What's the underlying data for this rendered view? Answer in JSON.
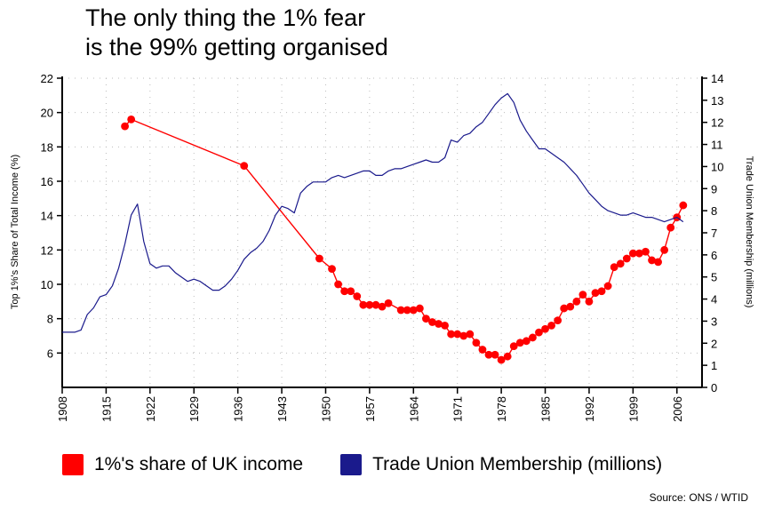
{
  "title": {
    "line1": "The only thing the 1% fear",
    "line2": "is the 99% getting organised"
  },
  "source": "Source: ONS / WTID",
  "legend": [
    {
      "label": "1%'s share of UK income",
      "color": "#ff0000"
    },
    {
      "label": "Trade Union Membership (millions)",
      "color": "#1a1a8c"
    }
  ],
  "chart_data": {
    "type": "line",
    "xlim": [
      1908,
      2010
    ],
    "x_ticks": [
      1908,
      1915,
      1922,
      1929,
      1936,
      1943,
      1950,
      1957,
      1964,
      1971,
      1978,
      1985,
      1992,
      1999,
      2006
    ],
    "ylabel_left": "Top 1%'s Share of Total Income (%)",
    "ylabel_right": "Trade Union Membership (millions)",
    "ylim_left": [
      4,
      22
    ],
    "yticks_left": [
      6,
      8,
      10,
      12,
      14,
      16,
      18,
      20,
      22
    ],
    "ylim_right": [
      0,
      14
    ],
    "yticks_right": [
      0,
      1,
      2,
      3,
      4,
      5,
      6,
      7,
      8,
      9,
      10,
      11,
      12,
      13,
      14
    ],
    "grid": "dotted",
    "series": [
      {
        "name": "1%'s share of UK income",
        "axis": "left",
        "color": "#ff0000",
        "markers": true,
        "x": [
          1918,
          1919,
          1937,
          1949,
          1951,
          1952,
          1953,
          1954,
          1955,
          1956,
          1957,
          1958,
          1959,
          1960,
          1962,
          1963,
          1964,
          1965,
          1966,
          1967,
          1968,
          1969,
          1970,
          1971,
          1972,
          1973,
          1974,
          1975,
          1976,
          1977,
          1978,
          1979,
          1980,
          1981,
          1982,
          1983,
          1984,
          1985,
          1986,
          1987,
          1988,
          1989,
          1990,
          1991,
          1992,
          1993,
          1994,
          1995,
          1996,
          1997,
          1998,
          1999,
          2000,
          2001,
          2002,
          2003,
          2004,
          2005,
          2006,
          2007
        ],
        "y": [
          19.2,
          19.6,
          16.9,
          11.5,
          10.9,
          10.0,
          9.6,
          9.6,
          9.3,
          8.8,
          8.8,
          8.8,
          8.7,
          8.9,
          8.5,
          8.5,
          8.5,
          8.6,
          8.0,
          7.8,
          7.7,
          7.6,
          7.1,
          7.1,
          7.0,
          7.1,
          6.6,
          6.2,
          5.9,
          5.9,
          5.6,
          5.8,
          6.4,
          6.6,
          6.7,
          6.9,
          7.2,
          7.4,
          7.6,
          7.9,
          8.6,
          8.7,
          9.0,
          9.4,
          9.0,
          9.5,
          9.6,
          9.9,
          11.0,
          11.2,
          11.5,
          11.8,
          11.8,
          11.9,
          11.4,
          11.3,
          12.0,
          13.3,
          13.9,
          14.6
        ]
      },
      {
        "name": "Trade Union Membership (millions)",
        "axis": "right",
        "color": "#1a1a8c",
        "markers": false,
        "x": [
          1908,
          1910,
          1911,
          1912,
          1913,
          1914,
          1915,
          1916,
          1917,
          1918,
          1919,
          1920,
          1921,
          1922,
          1923,
          1924,
          1925,
          1926,
          1927,
          1928,
          1929,
          1930,
          1931,
          1932,
          1933,
          1934,
          1935,
          1936,
          1937,
          1938,
          1939,
          1940,
          1941,
          1942,
          1943,
          1944,
          1945,
          1946,
          1947,
          1948,
          1949,
          1950,
          1951,
          1952,
          1953,
          1954,
          1955,
          1956,
          1957,
          1958,
          1959,
          1960,
          1961,
          1962,
          1963,
          1964,
          1965,
          1966,
          1967,
          1968,
          1969,
          1970,
          1971,
          1972,
          1973,
          1974,
          1975,
          1976,
          1977,
          1978,
          1979,
          1980,
          1981,
          1982,
          1983,
          1984,
          1985,
          1986,
          1987,
          1988,
          1989,
          1990,
          1991,
          1992,
          1993,
          1994,
          1995,
          1996,
          1997,
          1998,
          1999,
          2000,
          2001,
          2002,
          2003,
          2004,
          2005,
          2006,
          2007
        ],
        "y": [
          2.5,
          2.5,
          2.6,
          3.3,
          3.6,
          4.1,
          4.2,
          4.6,
          5.4,
          6.5,
          7.8,
          8.3,
          6.6,
          5.6,
          5.4,
          5.5,
          5.5,
          5.2,
          5.0,
          4.8,
          4.9,
          4.8,
          4.6,
          4.4,
          4.4,
          4.6,
          4.9,
          5.3,
          5.8,
          6.1,
          6.3,
          6.6,
          7.1,
          7.8,
          8.2,
          8.1,
          7.9,
          8.8,
          9.1,
          9.3,
          9.3,
          9.3,
          9.5,
          9.6,
          9.5,
          9.6,
          9.7,
          9.8,
          9.8,
          9.6,
          9.6,
          9.8,
          9.9,
          9.9,
          10.0,
          10.1,
          10.2,
          10.3,
          10.2,
          10.2,
          10.4,
          11.2,
          11.1,
          11.4,
          11.5,
          11.8,
          12.0,
          12.4,
          12.8,
          13.1,
          13.3,
          12.9,
          12.1,
          11.6,
          11.2,
          10.8,
          10.8,
          10.6,
          10.4,
          10.2,
          9.9,
          9.6,
          9.2,
          8.8,
          8.5,
          8.2,
          8.0,
          7.9,
          7.8,
          7.8,
          7.9,
          7.8,
          7.7,
          7.7,
          7.6,
          7.5,
          7.6,
          7.7,
          7.5
        ]
      }
    ]
  }
}
